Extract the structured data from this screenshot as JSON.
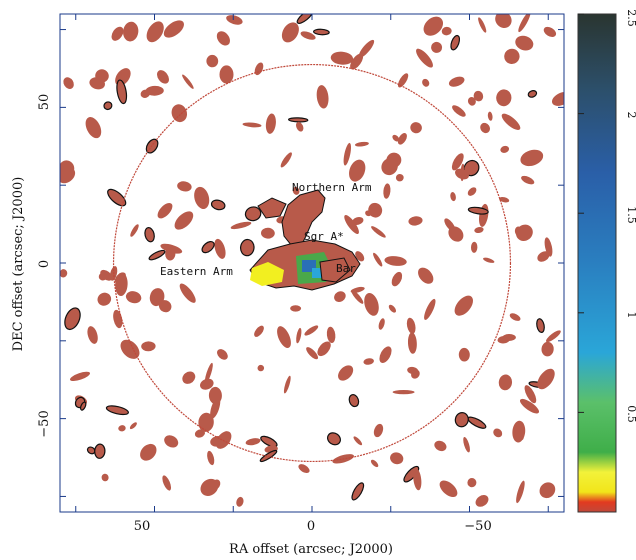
{
  "chart_data": {
    "type": "heatmap",
    "title": "",
    "xlabel": "RA offset (arcsec; J2000)",
    "ylabel": "DEC offset (arcsec; J2000)",
    "x_ticks": [
      "50",
      "0",
      "−50"
    ],
    "y_ticks": [
      "50",
      "0",
      "−50"
    ],
    "xlim": [
      80,
      -80
    ],
    "ylim": [
      -80,
      80
    ],
    "annotations": [
      "Northern Arm",
      "Sgr A*",
      "Eastern Arm",
      "Bar"
    ],
    "colorbar": {
      "ticks": [
        "0.5",
        "1",
        "1.5",
        "2",
        "2.5"
      ],
      "range": [
        0,
        2.5
      ],
      "colors": [
        "#c0483a",
        "#f2e51a",
        "#3fae49",
        "#2aa6d8",
        "#2a5fa8",
        "#2c4f6a",
        "#2a3530"
      ]
    },
    "beam_circle_radius_arcsec": 63
  }
}
